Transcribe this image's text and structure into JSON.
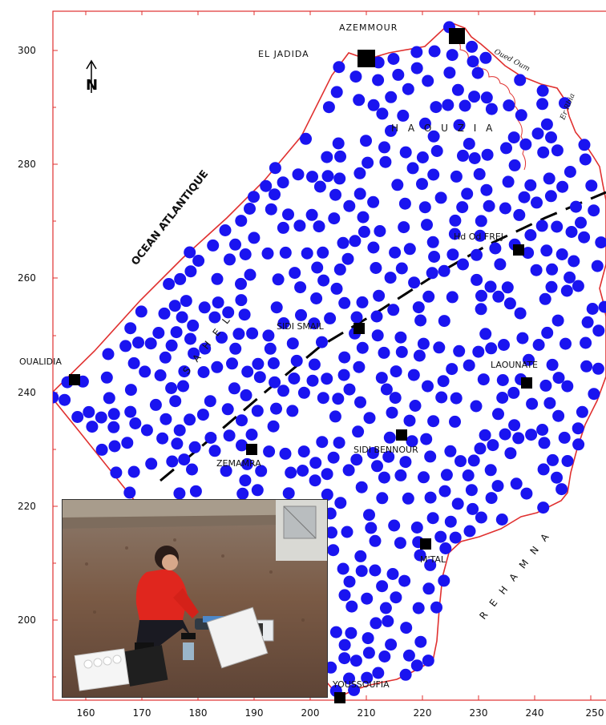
{
  "map": {
    "y_ticks": [
      "300",
      "280",
      "260",
      "240",
      "220",
      "200"
    ],
    "x_ticks": [
      "160",
      "170",
      "180",
      "190",
      "200",
      "210",
      "220",
      "230",
      "240",
      "250"
    ],
    "ocean_label": "OCEAN ATLANTIQUE",
    "north_arrow": "N",
    "region_labels": {
      "haouzia": "H A O U Z I A",
      "sahel": "S A H E L",
      "rehamna": "R E H A M N A"
    },
    "river_labels": {
      "oued": "Oued Oum",
      "errbia": "Er Rbia"
    },
    "towns": {
      "azemmour": "AZEMMOUR",
      "el_jadida": "EL JADIDA",
      "hd_od_frej": "Hd Od FREJ",
      "sidi_smail": "SIDI SMAIL",
      "oualidia": "OUALIDIA",
      "khmis_zemamra": "ZEMAMRA",
      "sidi_bennour": "SIDI BENNOUR",
      "laounate": "LAOUNATE",
      "mtal": "M'TAL",
      "youssoufia": "YOUSSOUFIA"
    },
    "colors": {
      "boundary": "#e0302f",
      "wells": "#1a14f0",
      "cities": "#000000",
      "fault": "#000000"
    }
  },
  "photo": {
    "icon": "field-sampling-photo"
  }
}
